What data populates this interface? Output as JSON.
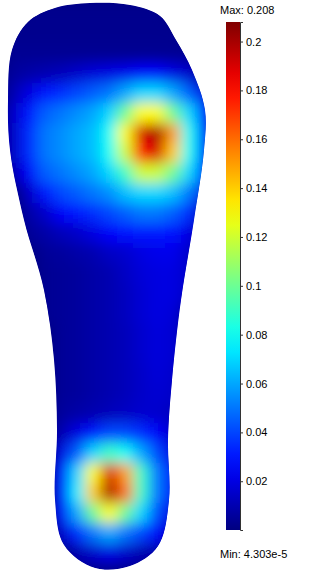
{
  "chart_data": {
    "type": "heatmap",
    "tick_labels": false,
    "cells": [
      [
        null,
        0.003,
        0.003,
        0.003,
        0.003,
        0.003,
        0.003,
        0.003,
        0.003,
        0.003,
        null,
        null,
        null
      ],
      [
        0.003,
        0.003,
        0.003,
        0.003,
        0.003,
        0.003,
        0.003,
        0.003,
        0.003,
        0.003,
        0.003,
        null,
        null
      ],
      [
        0.004,
        0.004,
        0.004,
        0.004,
        0.004,
        0.004,
        0.004,
        0.004,
        0.004,
        0.004,
        0.004,
        0.004,
        null
      ],
      [
        0.006,
        0.008,
        0.01,
        0.012,
        0.015,
        0.018,
        0.02,
        0.022,
        0.025,
        0.025,
        0.02,
        0.015,
        null
      ],
      [
        0.01,
        0.02,
        0.03,
        0.035,
        0.04,
        0.045,
        0.05,
        0.06,
        0.07,
        0.07,
        0.06,
        0.045,
        0.02
      ],
      [
        0.015,
        0.03,
        0.045,
        0.05,
        0.055,
        0.06,
        0.07,
        0.1,
        0.13,
        0.13,
        0.1,
        0.07,
        0.03
      ],
      [
        0.015,
        0.035,
        0.05,
        0.055,
        0.06,
        0.065,
        0.08,
        0.13,
        0.19,
        0.2,
        0.15,
        0.08,
        0.035
      ],
      [
        0.015,
        0.035,
        0.05,
        0.055,
        0.06,
        0.065,
        0.08,
        0.12,
        0.18,
        0.19,
        0.14,
        0.08,
        0.035
      ],
      [
        0.01,
        0.025,
        0.045,
        0.05,
        0.055,
        0.06,
        0.07,
        0.09,
        0.12,
        0.12,
        0.1,
        0.07,
        0.03
      ],
      [
        null,
        0.015,
        0.03,
        0.04,
        0.045,
        0.05,
        0.055,
        0.065,
        0.07,
        0.07,
        0.065,
        0.05,
        0.02
      ],
      [
        null,
        0.008,
        0.015,
        0.025,
        0.03,
        0.035,
        0.04,
        0.045,
        0.05,
        0.05,
        0.045,
        0.035,
        null
      ],
      [
        null,
        0.005,
        0.008,
        0.012,
        0.015,
        0.02,
        0.025,
        0.028,
        0.03,
        0.03,
        0.028,
        0.02,
        null
      ],
      [
        null,
        null,
        0.005,
        0.006,
        0.008,
        0.01,
        0.014,
        0.016,
        0.02,
        0.022,
        0.022,
        0.015,
        null
      ],
      [
        null,
        null,
        0.004,
        0.005,
        0.006,
        0.008,
        0.01,
        0.014,
        0.018,
        0.02,
        0.02,
        0.015,
        null
      ],
      [
        null,
        null,
        0.004,
        0.005,
        0.006,
        0.008,
        0.01,
        0.013,
        0.017,
        0.02,
        0.02,
        0.014,
        null
      ],
      [
        null,
        null,
        0.004,
        0.005,
        0.006,
        0.008,
        0.01,
        0.013,
        0.017,
        0.02,
        0.018,
        null,
        null
      ],
      [
        null,
        null,
        null,
        0.005,
        0.006,
        0.008,
        0.01,
        0.012,
        0.016,
        0.019,
        0.017,
        null,
        null
      ],
      [
        null,
        null,
        null,
        0.005,
        0.006,
        0.008,
        0.01,
        0.012,
        0.016,
        0.019,
        0.017,
        null,
        null
      ],
      [
        null,
        null,
        null,
        0.005,
        0.006,
        0.008,
        0.01,
        0.012,
        0.015,
        0.018,
        0.016,
        null,
        null
      ],
      [
        null,
        null,
        null,
        0.005,
        0.006,
        0.008,
        0.01,
        0.012,
        0.015,
        0.017,
        0.015,
        null,
        null
      ],
      [
        null,
        null,
        null,
        0.006,
        0.008,
        0.01,
        0.012,
        0.014,
        0.016,
        0.016,
        0.013,
        null,
        null
      ],
      [
        null,
        null,
        null,
        0.01,
        0.02,
        0.03,
        0.04,
        0.04,
        0.035,
        0.025,
        0.015,
        null,
        null
      ],
      [
        null,
        null,
        null,
        0.02,
        0.045,
        0.07,
        0.09,
        0.08,
        0.06,
        0.04,
        0.02,
        null,
        null
      ],
      [
        null,
        null,
        null,
        0.03,
        0.07,
        0.13,
        0.19,
        0.15,
        0.09,
        0.05,
        0.025,
        null,
        null
      ],
      [
        null,
        null,
        null,
        0.03,
        0.075,
        0.14,
        0.2,
        0.16,
        0.09,
        0.05,
        0.025,
        null,
        null
      ],
      [
        null,
        null,
        null,
        0.025,
        0.06,
        0.1,
        0.13,
        0.1,
        0.07,
        0.04,
        0.02,
        null,
        null
      ],
      [
        null,
        null,
        null,
        0.015,
        0.035,
        0.05,
        0.06,
        0.05,
        0.04,
        0.025,
        0.012,
        null,
        null
      ],
      [
        null,
        null,
        null,
        null,
        0.01,
        0.015,
        0.02,
        0.015,
        0.01,
        0.008,
        null,
        null,
        null
      ]
    ],
    "colorbar": {
      "range": [
        4.303e-05,
        0.208
      ],
      "ticks": [
        0.02,
        0.04,
        0.06,
        0.08,
        0.1,
        0.12,
        0.14,
        0.16,
        0.18,
        0.2
      ],
      "max": {
        "value": 0.208,
        "label": "Max: 0.208"
      },
      "min": {
        "value": 4.303e-05,
        "label": "Min: 4.303e-5"
      }
    }
  }
}
